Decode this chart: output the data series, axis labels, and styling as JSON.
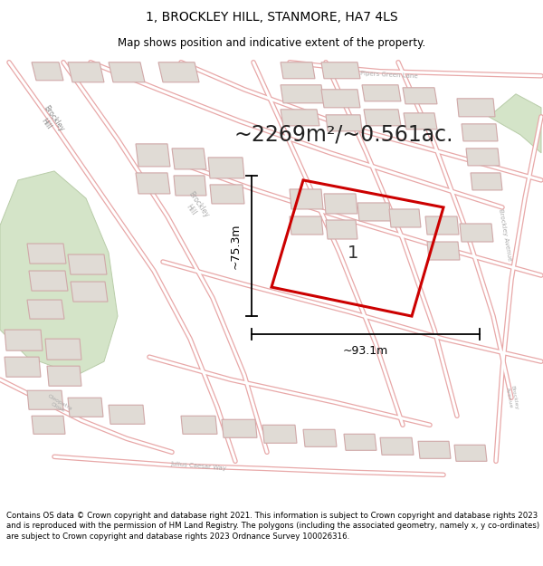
{
  "title": "1, BROCKLEY HILL, STANMORE, HA7 4LS",
  "subtitle": "Map shows position and indicative extent of the property.",
  "area_text": "~2269m²/~0.561ac.",
  "label": "1",
  "dim_width": "~93.1m",
  "dim_height": "~75.3m",
  "footer": "Contains OS data © Crown copyright and database right 2021. This information is subject to Crown copyright and database rights 2023 and is reproduced with the permission of HM Land Registry. The polygons (including the associated geometry, namely x, y co-ordinates) are subject to Crown copyright and database rights 2023 Ordnance Survey 100026316.",
  "map_bg": "#f7f4f1",
  "road_fill": "#ffffff",
  "road_line": "#e8a8a8",
  "building_fill": "#e0dbd5",
  "building_edge": "#d0a8a8",
  "green_fill": "#d4e4c8",
  "green_edge": "#b8cca8",
  "property_color": "#cc0000",
  "title_fontsize": 10,
  "subtitle_fontsize": 8.5,
  "area_fontsize": 17,
  "label_fontsize": 14,
  "footer_fontsize": 6.2,
  "dim_fontsize": 9
}
